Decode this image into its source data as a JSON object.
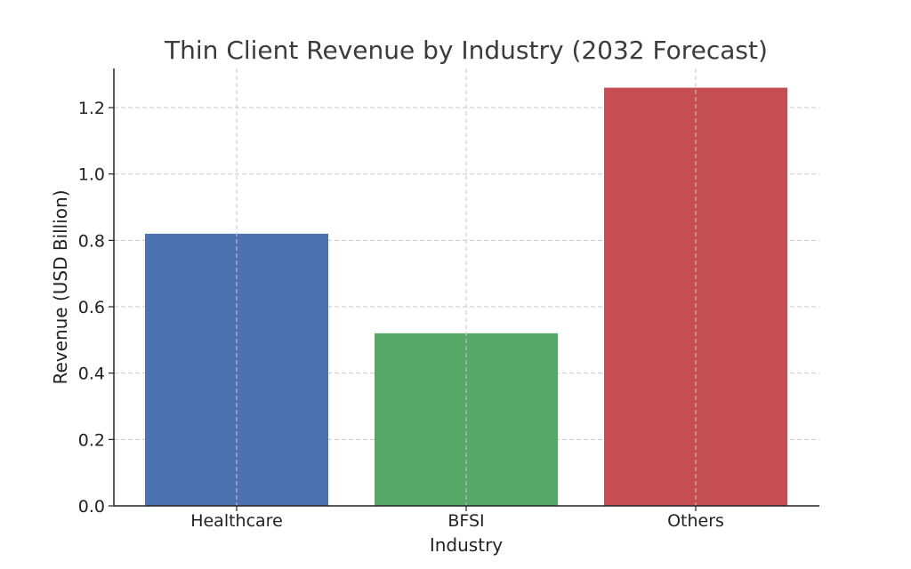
{
  "chart_data": {
    "type": "bar",
    "title": "Thin Client Revenue by Industry (2032 Forecast)",
    "xlabel": "Industry",
    "ylabel": "Revenue (USD Billion)",
    "categories": [
      "Healthcare",
      "BFSI",
      "Others"
    ],
    "values": [
      0.82,
      0.52,
      1.26
    ],
    "colors": [
      "#4c72b0",
      "#55a868",
      "#c44e52"
    ],
    "ylim": [
      0,
      1.32
    ],
    "yticks": [
      0.0,
      0.2,
      0.4,
      0.6,
      0.8,
      1.0,
      1.2
    ],
    "ytick_labels": [
      "0.0",
      "0.2",
      "0.4",
      "0.6",
      "0.8",
      "1.0",
      "1.2"
    ],
    "grid": true
  }
}
